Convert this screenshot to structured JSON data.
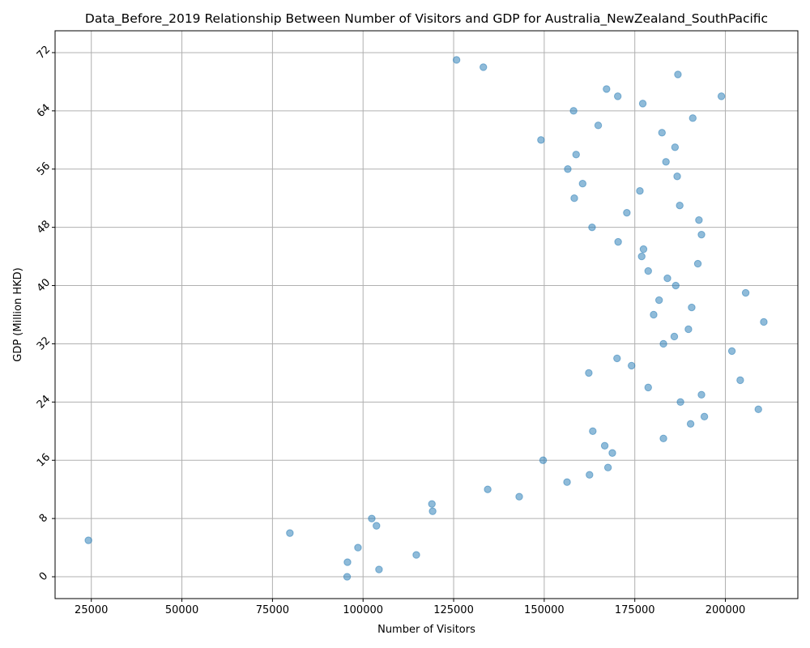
{
  "chart_data": {
    "type": "scatter",
    "title": "Data_Before_2019 Relationship Between Number of Visitors and GDP for Australia_NewZealand_SouthPacific",
    "xlabel": "Number of Visitors",
    "ylabel": "GDP (Million HKD)",
    "xlim": [
      15000,
      220000
    ],
    "ylim": [
      -3,
      75
    ],
    "xticks": [
      25000,
      50000,
      75000,
      100000,
      125000,
      150000,
      175000,
      200000
    ],
    "xtick_labels": [
      "25000",
      "50000",
      "75000",
      "100000",
      "125000",
      "150000",
      "175000",
      "200000"
    ],
    "yticks": [
      0,
      8,
      16,
      24,
      32,
      40,
      48,
      56,
      64,
      72
    ],
    "ytick_labels": [
      "0",
      "8",
      "16",
      "24",
      "32",
      "40",
      "48",
      "56",
      "64",
      "72"
    ],
    "grid": true,
    "point_color": "#1f77b4",
    "x": [
      125800,
      133200,
      186900,
      167200,
      198900,
      170300,
      177200,
      158100,
      191000,
      164900,
      182500,
      186100,
      149100,
      158800,
      183600,
      156500,
      186700,
      160600,
      176400,
      158300,
      187400,
      172800,
      192700,
      163200,
      193400,
      170400,
      177400,
      176900,
      192400,
      178700,
      184000,
      186300,
      205600,
      181700,
      190700,
      180200,
      210600,
      189800,
      185900,
      182900,
      201800,
      170100,
      174100,
      162300,
      204100,
      178700,
      193400,
      187600,
      209100,
      194200,
      190400,
      163400,
      182900,
      166700,
      168800,
      149700,
      167600,
      162500,
      156300,
      134400,
      143100,
      119000,
      119200,
      102400,
      103700,
      79800,
      24200,
      98600,
      114700,
      95700,
      104400,
      95600
    ],
    "y": [
      71,
      70,
      69,
      67,
      66,
      66,
      65,
      64,
      63,
      62,
      61,
      59,
      60,
      58,
      57,
      56,
      55,
      54,
      53,
      52,
      51,
      50,
      49,
      48,
      47,
      46,
      45,
      44,
      43,
      42,
      41,
      40,
      39,
      38,
      37,
      36,
      35,
      34,
      33,
      32,
      31,
      30,
      29,
      28,
      27,
      26,
      25,
      24,
      23,
      22,
      21,
      20,
      19,
      18,
      17,
      16,
      15,
      14,
      13,
      12,
      11,
      10,
      9,
      8,
      7,
      6,
      5,
      4,
      3,
      2,
      1,
      0
    ]
  }
}
